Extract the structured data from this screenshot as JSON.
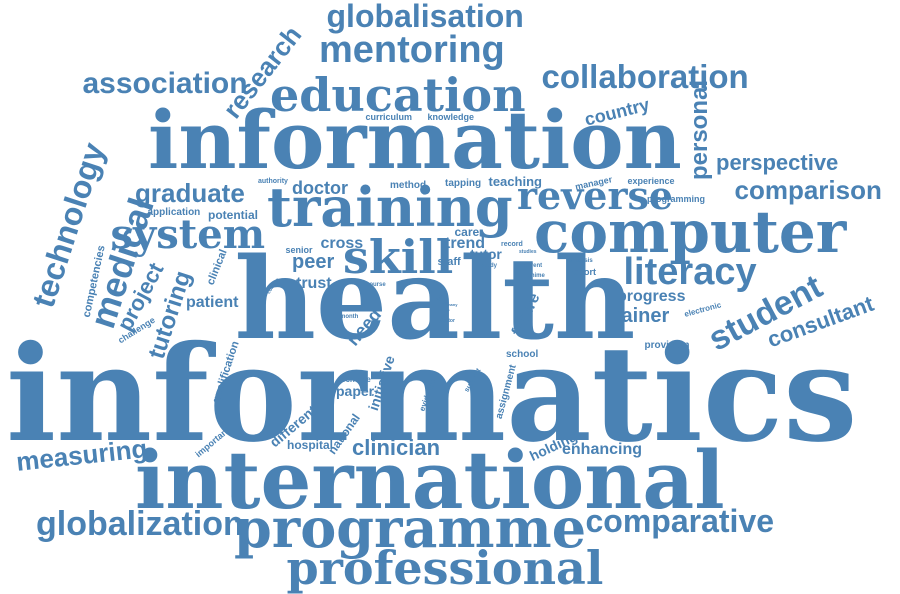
{
  "palette": {
    "word": "#4a82b4",
    "background": "#ffffff"
  },
  "words": [
    "informatics",
    "health",
    "international",
    "information",
    "programme",
    "training",
    "computer",
    "professional",
    "education",
    "skill",
    "mentoring",
    "globalization",
    "globalisation",
    "collaboration",
    "association",
    "comparative",
    "reverse",
    "system",
    "student",
    "literacy",
    "comparison",
    "medical",
    "technology",
    "graduate",
    "research",
    "personal",
    "measuring",
    "clinician",
    "consultant",
    "tutoring",
    "project",
    "perspective",
    "trainer",
    "country",
    "peer",
    "doctor",
    "patient",
    "trust",
    "cross",
    "progress",
    "need",
    "trend",
    "initiative",
    "paper",
    "future",
    "enhancing",
    "holding",
    "hospital",
    "different",
    "national",
    "care",
    "tutor",
    "staff",
    "assignment",
    "school",
    "provision",
    "potential",
    "application",
    "competencies",
    "challenge",
    "qualification",
    "clinical",
    "scheme",
    "important",
    "evidence",
    "support",
    "teaching",
    "method",
    "tapping",
    "manager",
    "experience",
    "programming",
    "curriculum",
    "knowledge",
    "authority",
    "senior",
    "record",
    "studies",
    "study",
    "analysis",
    "report",
    "chime",
    "current",
    "electronic",
    "month",
    "course",
    "college",
    "factor",
    "column",
    "bar",
    "many",
    "use"
  ]
}
